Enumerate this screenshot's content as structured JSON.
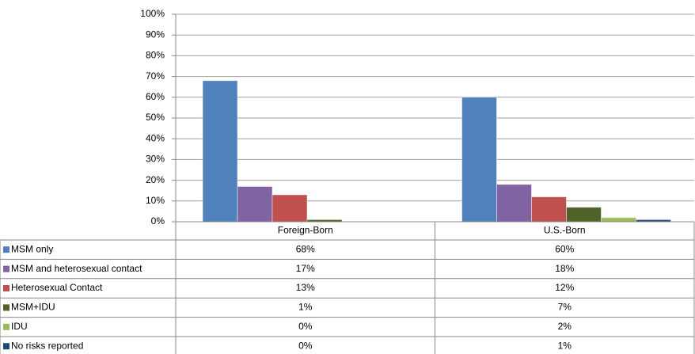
{
  "chart_data": {
    "type": "bar",
    "categories": [
      "Foreign-Born",
      "U.S.-Born"
    ],
    "series": [
      {
        "name": "MSM only",
        "color": "#4f81bd",
        "values": [
          68,
          60
        ],
        "value_labels": [
          "68%",
          "60%"
        ]
      },
      {
        "name": "MSM and heterosexual contact",
        "color": "#8064a2",
        "values": [
          17,
          18
        ],
        "value_labels": [
          "17%",
          "18%"
        ]
      },
      {
        "name": "Heterosexual Contact",
        "color": "#c0504d",
        "values": [
          13,
          12
        ],
        "value_labels": [
          "13%",
          "12%"
        ]
      },
      {
        "name": "MSM+IDU",
        "color": "#4f6228",
        "values": [
          1,
          7
        ],
        "value_labels": [
          "1%",
          "7%"
        ]
      },
      {
        "name": "IDU",
        "color": "#9bbb59",
        "values": [
          0,
          2
        ],
        "value_labels": [
          "0%",
          "2%"
        ]
      },
      {
        "name": "No risks reported",
        "color": "#1f497d",
        "values": [
          0,
          1
        ],
        "value_labels": [
          "0%",
          "1%"
        ]
      }
    ],
    "ylim": [
      0,
      100
    ],
    "yticks": [
      {
        "value": 0,
        "label": "0%"
      },
      {
        "value": 10,
        "label": "10%"
      },
      {
        "value": 20,
        "label": "20%"
      },
      {
        "value": 30,
        "label": "30%"
      },
      {
        "value": 40,
        "label": "40%"
      },
      {
        "value": 50,
        "label": "50%"
      },
      {
        "value": 60,
        "label": "60%"
      },
      {
        "value": 70,
        "label": "70%"
      },
      {
        "value": 80,
        "label": "80%"
      },
      {
        "value": 90,
        "label": "90%"
      },
      {
        "value": 100,
        "label": "100%"
      }
    ],
    "grid": true
  }
}
